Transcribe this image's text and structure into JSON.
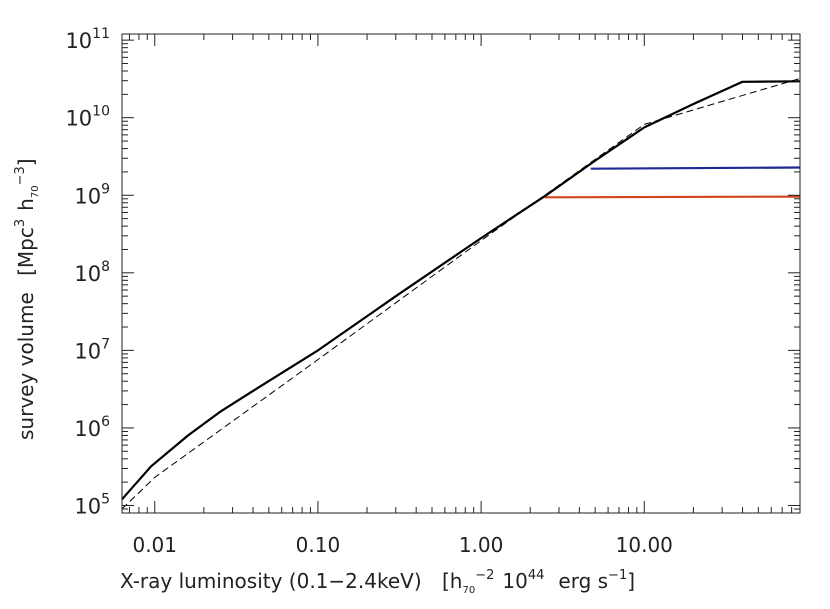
{
  "chart_data": {
    "type": "line",
    "title": "",
    "xlabel": {
      "main": "X-ray luminosity (0.1−2.4keV)",
      "unit_h": "h",
      "unit_h_sub": "70",
      "unit_h_exp": "−2",
      "unit_ten": "10",
      "unit_ten_exp": "44",
      "unit_erg": "erg s",
      "unit_erg_exp": "−1"
    },
    "ylabel": {
      "main": "survey volume",
      "unit_mpc": "Mpc",
      "unit_mpc_exp": "3",
      "unit_h": "h",
      "unit_h_sub": "70",
      "unit_h_exp": "−3"
    },
    "x_scale": "log",
    "y_scale": "log",
    "xlim": [
      0.0063,
      90
    ],
    "ylim": [
      80000,
      120000000000
    ],
    "grid": false,
    "x_ticks": [
      {
        "value": 0.01,
        "label": "0.01"
      },
      {
        "value": 0.1,
        "label": "0.10"
      },
      {
        "value": 1,
        "label": "1.00"
      },
      {
        "value": 10,
        "label": "10.00"
      }
    ],
    "y_ticks": [
      {
        "value": 100000,
        "base": "10",
        "exp": "5"
      },
      {
        "value": 1000000,
        "base": "10",
        "exp": "6"
      },
      {
        "value": 10000000,
        "base": "10",
        "exp": "7"
      },
      {
        "value": 100000000,
        "base": "10",
        "exp": "8"
      },
      {
        "value": 1000000000,
        "base": "10",
        "exp": "9"
      },
      {
        "value": 10000000000,
        "base": "10",
        "exp": "10"
      },
      {
        "value": 100000000000,
        "base": "10",
        "exp": "11"
      }
    ],
    "series": [
      {
        "color": "#000000",
        "style": "dashed",
        "x": [
          0.0063,
          0.01,
          0.1,
          1,
          10,
          90
        ],
        "y": [
          90000,
          230000,
          7600000,
          260000000,
          8200000000,
          32000000000
        ]
      },
      {
        "color": "#d2461e",
        "style": "solid",
        "x": [
          2.45,
          90
        ],
        "y": [
          940000000,
          960000000
        ]
      },
      {
        "color": "#1e2896",
        "style": "solid",
        "x": [
          4.7,
          90
        ],
        "y": [
          2200000000,
          2280000000
        ]
      },
      {
        "color": "#000000",
        "style": "solid",
        "x": [
          0.0063,
          0.0095,
          0.016,
          0.025,
          0.04,
          0.1,
          0.3,
          1,
          2.5,
          5,
          10,
          20,
          40,
          90
        ],
        "y": [
          120000,
          320000,
          800000,
          1600000,
          3000000,
          10000000,
          50000000,
          280000000,
          1000000000,
          2800000000,
          7500000000,
          15000000000,
          29000000000,
          29500000000
        ]
      }
    ]
  }
}
